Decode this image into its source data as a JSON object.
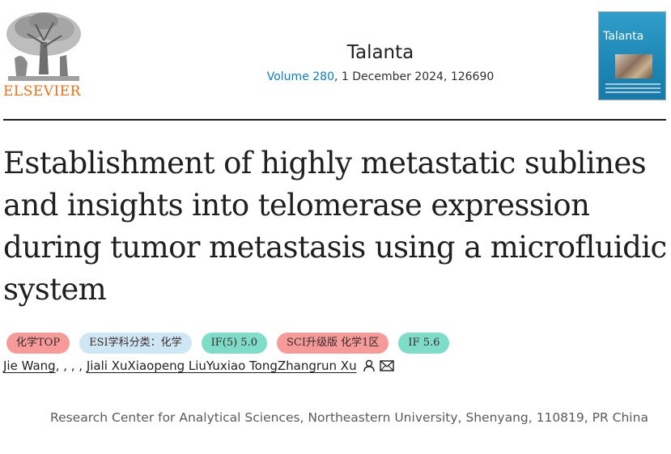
{
  "header": {
    "publisher_wordmark": "ELSEVIER",
    "journal_title": "Talanta",
    "volume_link": "Volume 280",
    "citation_rest": ", 1 December 2024, 126690",
    "cover_title": "Talanta",
    "icons": [
      "elsevier-tree-logo",
      "journal-cover-image"
    ]
  },
  "article": {
    "title": "Establishment of highly metastatic sublines and insights into telomerase expression during tumor metastasis using a microfluidic system"
  },
  "badges": [
    {
      "label": "化学TOP",
      "color": "#f79a9a"
    },
    {
      "label": "ESI学科分类：化学",
      "color": "#cfe6f5"
    },
    {
      "label": "IF(5) 5.0",
      "color": "#7fdcc8"
    },
    {
      "label": "SCI升级版 化学1区",
      "color": "#f79a9a"
    },
    {
      "label": "IF 5.6",
      "color": "#7fdcc8"
    }
  ],
  "authors": {
    "first": "Jie Wang",
    "separators": ", , , , ",
    "rest": "Jiali XuXiaopeng LiuYuxiao TongZhangrun Xu",
    "icons": [
      "person-icon",
      "envelope-icon"
    ]
  },
  "affiliation": "Research Center for Analytical Sciences, Northeastern University, Shenyang, 110819, PR China"
}
